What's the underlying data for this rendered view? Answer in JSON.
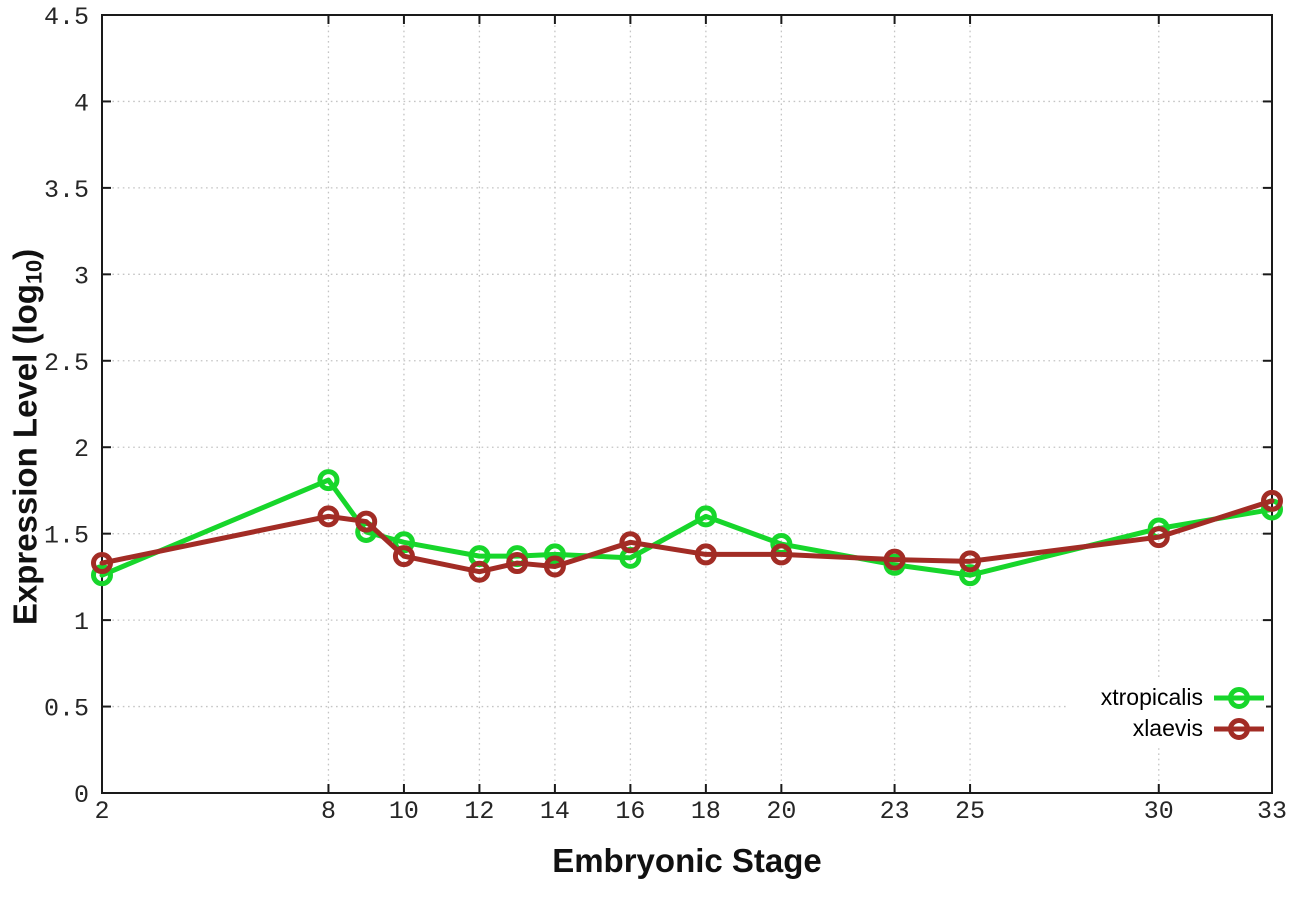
{
  "chart_data": {
    "type": "line",
    "title": "",
    "xlabel": "Embryonic Stage",
    "ylabel": "Expression Level (log10)",
    "ylabel_parts": {
      "prefix": "Expression Level (log",
      "subscript": "10",
      "suffix": ")"
    },
    "xlim": [
      2,
      33
    ],
    "ylim": [
      0,
      4.5
    ],
    "grid": true,
    "grid_style": "dotted",
    "grid_color": "#c4c4c4",
    "axis_color": "#1a1a1a",
    "legend_position": "bottom-right-inside",
    "x_ticks": [
      {
        "value": 2,
        "label": "2"
      },
      {
        "value": 8,
        "label": "8"
      },
      {
        "value": 10,
        "label": "10"
      },
      {
        "value": 12,
        "label": "12"
      },
      {
        "value": 14,
        "label": "14"
      },
      {
        "value": 16,
        "label": "16"
      },
      {
        "value": 18,
        "label": "18"
      },
      {
        "value": 20,
        "label": "20"
      },
      {
        "value": 23,
        "label": "23"
      },
      {
        "value": 25,
        "label": "25"
      },
      {
        "value": 30,
        "label": "30"
      },
      {
        "value": 33,
        "label": "33"
      }
    ],
    "y_ticks": [
      {
        "value": 0,
        "label": "0"
      },
      {
        "value": 0.5,
        "label": "0.5"
      },
      {
        "value": 1,
        "label": "1"
      },
      {
        "value": 1.5,
        "label": "1.5"
      },
      {
        "value": 2,
        "label": "2"
      },
      {
        "value": 2.5,
        "label": "2.5"
      },
      {
        "value": 3,
        "label": "3"
      },
      {
        "value": 3.5,
        "label": "3.5"
      },
      {
        "value": 4,
        "label": "4"
      },
      {
        "value": 4.5,
        "label": "4.5"
      }
    ],
    "x": [
      2,
      8,
      9,
      10,
      12,
      13,
      14,
      16,
      18,
      20,
      23,
      25,
      30,
      33
    ],
    "series": [
      {
        "name": "xtropicalis",
        "color": "#17d62b",
        "marker": "open-circle",
        "values": [
          1.26,
          1.81,
          1.51,
          1.45,
          1.37,
          1.37,
          1.38,
          1.36,
          1.6,
          1.44,
          1.32,
          1.26,
          1.53,
          1.64
        ]
      },
      {
        "name": "xlaevis",
        "color": "#a22c25",
        "marker": "open-circle",
        "values": [
          1.33,
          1.6,
          1.57,
          1.37,
          1.28,
          1.33,
          1.31,
          1.45,
          1.38,
          1.38,
          1.35,
          1.34,
          1.48,
          1.69
        ]
      }
    ]
  }
}
